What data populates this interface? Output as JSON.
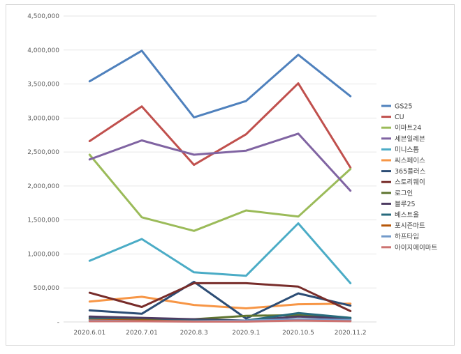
{
  "chart_data": {
    "type": "line",
    "title": "",
    "xlabel": "",
    "ylabel": "",
    "categories": [
      "2020.6.01",
      "2020.7.01",
      "2020.8.3",
      "2020.9.1",
      "2020.10.5",
      "2020.11.2"
    ],
    "ylim": [
      0,
      4500000
    ],
    "yticks": [
      0,
      500000,
      1000000,
      1500000,
      2000000,
      2500000,
      3000000,
      3500000,
      4000000,
      4500000
    ],
    "ytick_labels": [
      "-",
      "500,000",
      "1,000,000",
      "1,500,000",
      "2,000,000",
      "2,500,000",
      "3,000,000",
      "3,500,000",
      "4,000,000",
      "4,500,000"
    ],
    "grid": true,
    "legend_position": "right",
    "series": [
      {
        "name": "GS25",
        "color": "#4f81bd",
        "values": [
          3540000,
          3990000,
          3010000,
          3250000,
          3930000,
          3320000
        ]
      },
      {
        "name": "CU",
        "color": "#c0504d",
        "values": [
          2660000,
          3170000,
          2310000,
          2760000,
          3510000,
          2270000
        ]
      },
      {
        "name": "이마트24",
        "color": "#9bbb59",
        "values": [
          2460000,
          1540000,
          1340000,
          1640000,
          1550000,
          2250000
        ]
      },
      {
        "name": "세븐일레븐",
        "color": "#8064a2",
        "values": [
          2390000,
          2670000,
          2460000,
          2520000,
          2770000,
          1930000
        ]
      },
      {
        "name": "미니스톱",
        "color": "#4bacc6",
        "values": [
          900000,
          1220000,
          730000,
          680000,
          1450000,
          570000
        ]
      },
      {
        "name": "씨스페이스",
        "color": "#f79646",
        "values": [
          300000,
          370000,
          250000,
          200000,
          260000,
          270000
        ]
      },
      {
        "name": "365플러스",
        "color": "#2c4d75",
        "values": [
          170000,
          120000,
          590000,
          50000,
          420000,
          240000
        ]
      },
      {
        "name": "스토리웨이",
        "color": "#772c2a",
        "values": [
          430000,
          220000,
          570000,
          570000,
          520000,
          160000
        ]
      },
      {
        "name": "로그인",
        "color": "#5f7530",
        "values": [
          60000,
          40000,
          40000,
          90000,
          100000,
          60000
        ]
      },
      {
        "name": "블루25",
        "color": "#4d3b62",
        "values": [
          80000,
          60000,
          40000,
          20000,
          80000,
          50000
        ]
      },
      {
        "name": "베스트올",
        "color": "#276a7c",
        "values": [
          50000,
          20000,
          20000,
          20000,
          130000,
          60000
        ]
      },
      {
        "name": "포시즌마트",
        "color": "#b65708",
        "values": [
          30000,
          20000,
          10000,
          10000,
          30000,
          20000
        ]
      },
      {
        "name": "하프타임",
        "color": "#729aca",
        "values": [
          20000,
          10000,
          10000,
          20000,
          40000,
          30000
        ]
      },
      {
        "name": "아이지에이마트",
        "color": "#cd7371",
        "values": [
          10000,
          10000,
          5000,
          5000,
          20000,
          10000
        ]
      }
    ]
  }
}
